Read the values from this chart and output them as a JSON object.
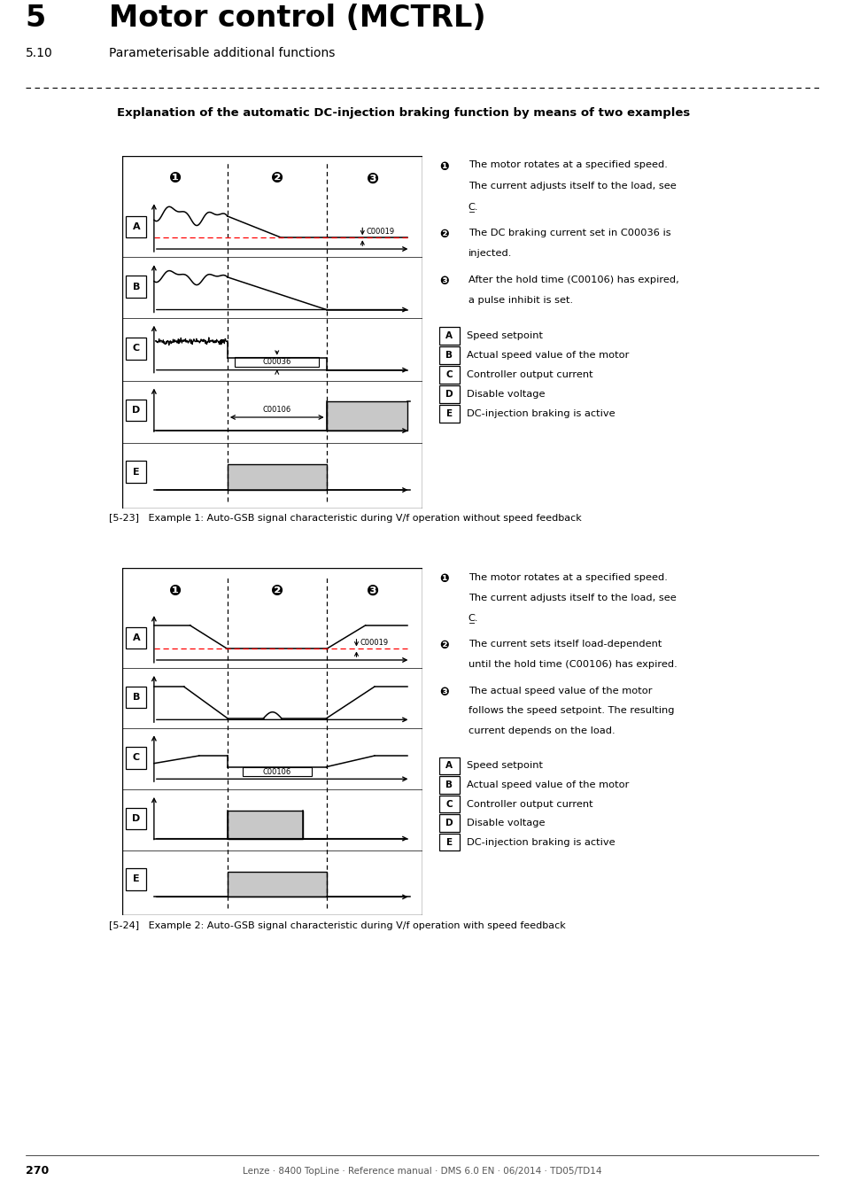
{
  "title_num": "5",
  "title_text": "Motor control (MCTRL)",
  "subtitle_num": "5.10",
  "subtitle_text": "Parameterisable additional functions",
  "section_title": "Explanation of the automatic DC-injection braking function by means of two examples",
  "fig1_caption": "[5-23]   Example 1: Auto-GSB signal characteristic during V/f operation without speed feedback",
  "fig2_caption": "[5-24]   Example 2: Auto-GSB signal characteristic during V/f operation with speed feedback",
  "footer": "Lenze · 8400 TopLine · Reference manual · DMS 6.0 EN · 06/2014 · TD05/TD14",
  "page_num": "270",
  "right_notes_1": [
    [
      "❶",
      "The motor rotates at a specified speed.",
      "The current adjusts itself to the load, see",
      "C̲."
    ],
    [
      "❷",
      "The DC braking current set in C00036 is",
      "injected."
    ],
    [
      "❸",
      "After the hold time (C00106) has expired,",
      "a pulse inhibit is set."
    ]
  ],
  "right_labels_1": [
    [
      "A",
      "Speed setpoint"
    ],
    [
      "B",
      "Actual speed value of the motor"
    ],
    [
      "C",
      "Controller output current"
    ],
    [
      "D",
      "Disable voltage"
    ],
    [
      "E",
      "DC-injection braking is active"
    ]
  ],
  "right_notes_2": [
    [
      "❶",
      "The motor rotates at a specified speed.",
      "The current adjusts itself to the load, see",
      "C̲."
    ],
    [
      "❷",
      "The current sets itself load-dependent",
      "until the hold time (C00106) has expired."
    ],
    [
      "❸",
      "The actual speed value of the motor",
      "follows the speed setpoint. The resulting",
      "current depends on the load."
    ]
  ],
  "right_labels_2": [
    [
      "A",
      "Speed setpoint"
    ],
    [
      "B",
      "Actual speed value of the motor"
    ],
    [
      "C",
      "Controller output current"
    ],
    [
      "D",
      "Disable voltage"
    ],
    [
      "E",
      "DC-injection braking is active"
    ]
  ],
  "bg_color": "#ffffff",
  "gray_fill": "#c8c8c8",
  "red_dashed": "#ff0000"
}
